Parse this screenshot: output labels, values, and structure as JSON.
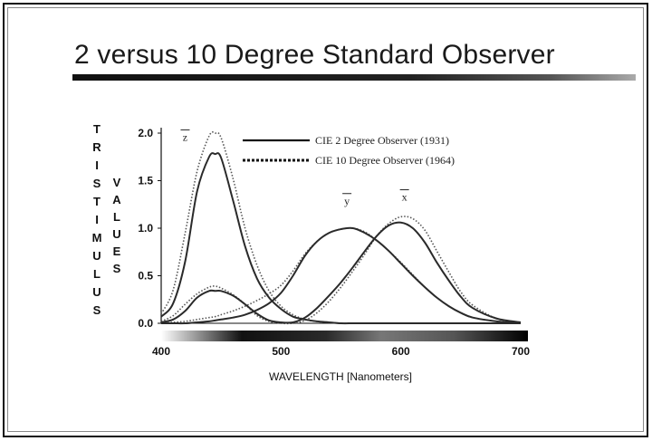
{
  "slide": {
    "title": "2 versus 10 Degree Standard Observer"
  },
  "chart_data": {
    "type": "line",
    "title": "",
    "xlabel": "WAVELENGTH [Nanometers]",
    "ylabel_left": "TRISTIMULUS",
    "ylabel_right": "VALUES",
    "xlim": [
      400,
      700
    ],
    "ylim": [
      0,
      2.0
    ],
    "x_ticks": [
      400,
      500,
      600,
      700
    ],
    "y_ticks": [
      "2.0",
      "1.5",
      "1.0",
      "0.5",
      "0.0"
    ],
    "y_tick_values": [
      2.0,
      1.5,
      1.0,
      0.5,
      0.0
    ],
    "legend": [
      {
        "label": "CIE 2 Degree Observer (1931)",
        "style": "solid"
      },
      {
        "label": "CIE 10 Degree Observer (1964)",
        "style": "dotted"
      }
    ],
    "curve_labels": [
      {
        "text": "z",
        "x": 420,
        "y": 1.92
      },
      {
        "text": "y",
        "x": 555,
        "y": 1.25
      },
      {
        "text": "x",
        "x": 603,
        "y": 1.29
      }
    ],
    "x": [
      400,
      410,
      420,
      430,
      440,
      445,
      450,
      460,
      470,
      480,
      490,
      500,
      510,
      520,
      530,
      540,
      550,
      560,
      570,
      580,
      590,
      600,
      610,
      620,
      630,
      640,
      650,
      660,
      680,
      700
    ],
    "series": [
      {
        "observer": "2",
        "line": "solid",
        "curve": "x",
        "values": [
          0.01,
          0.04,
          0.13,
          0.27,
          0.34,
          0.34,
          0.34,
          0.29,
          0.2,
          0.1,
          0.03,
          0.01,
          0.01,
          0.06,
          0.16,
          0.29,
          0.43,
          0.59,
          0.76,
          0.92,
          1.03,
          1.06,
          1.0,
          0.85,
          0.64,
          0.45,
          0.28,
          0.16,
          0.05,
          0.01
        ]
      },
      {
        "observer": "2",
        "line": "solid",
        "curve": "y",
        "values": [
          0.0,
          0.0,
          0.0,
          0.01,
          0.02,
          0.03,
          0.04,
          0.06,
          0.09,
          0.14,
          0.21,
          0.32,
          0.5,
          0.71,
          0.86,
          0.95,
          0.99,
          1.0,
          0.95,
          0.87,
          0.76,
          0.63,
          0.5,
          0.38,
          0.27,
          0.18,
          0.11,
          0.06,
          0.02,
          0.0
        ]
      },
      {
        "observer": "2",
        "line": "solid",
        "curve": "z",
        "values": [
          0.07,
          0.21,
          0.65,
          1.39,
          1.75,
          1.78,
          1.74,
          1.29,
          0.81,
          0.47,
          0.27,
          0.15,
          0.07,
          0.04,
          0.02,
          0.01,
          0.0,
          0.0,
          0.0,
          0.0,
          0.0,
          0.0,
          0.0,
          0.0,
          0.0,
          0.0,
          0.0,
          0.0,
          0.0,
          0.0
        ]
      },
      {
        "observer": "10",
        "line": "dotted",
        "curve": "x",
        "values": [
          0.02,
          0.08,
          0.2,
          0.31,
          0.38,
          0.39,
          0.37,
          0.3,
          0.2,
          0.08,
          0.02,
          0.0,
          0.0,
          0.03,
          0.11,
          0.23,
          0.38,
          0.55,
          0.73,
          0.92,
          1.05,
          1.12,
          1.1,
          0.98,
          0.76,
          0.54,
          0.33,
          0.19,
          0.05,
          0.01
        ]
      },
      {
        "observer": "10",
        "line": "dotted",
        "curve": "y",
        "values": [
          0.0,
          0.01,
          0.02,
          0.04,
          0.06,
          0.07,
          0.09,
          0.13,
          0.18,
          0.24,
          0.31,
          0.4,
          0.55,
          0.73,
          0.86,
          0.95,
          0.99,
          1.0,
          0.96,
          0.87,
          0.76,
          0.64,
          0.51,
          0.38,
          0.27,
          0.18,
          0.11,
          0.06,
          0.02,
          0.0
        ]
      },
      {
        "observer": "10",
        "line": "dotted",
        "curve": "z",
        "values": [
          0.1,
          0.35,
          0.95,
          1.6,
          1.97,
          2.0,
          1.95,
          1.52,
          1.0,
          0.61,
          0.34,
          0.18,
          0.09,
          0.04,
          0.02,
          0.01,
          0.0,
          0.0,
          0.0,
          0.0,
          0.0,
          0.0,
          0.0,
          0.0,
          0.0,
          0.0,
          0.0,
          0.0,
          0.0,
          0.0
        ]
      }
    ],
    "colors": {
      "curve": "#2a2a2a",
      "axis": "#111111",
      "spectrum_light": "#ffffff",
      "spectrum_dark": "#000000"
    }
  }
}
